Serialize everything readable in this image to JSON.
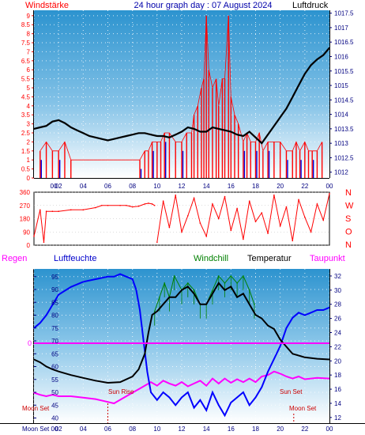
{
  "header": {
    "left": "Windstärke",
    "center": "24 hour graph day : 07 August 2024",
    "right": "Luftdruck"
  },
  "mid_header": {
    "regen": "Regen",
    "luftfeuchte": "Luftfeuchte",
    "windchill": "Windchill",
    "temperatur": "Temperatur",
    "taupunkt": "Taupunkt"
  },
  "colors": {
    "wind": "#ff0000",
    "wind_blue": "#0000dd",
    "pressure": "#000000",
    "humidity": "#0000ff",
    "temperature": "#000000",
    "windchill": "#008000",
    "dewpoint": "#ff00ff",
    "rain": "#ff00ff",
    "axis_left": "#ff0000",
    "axis_right": "#000080"
  },
  "chart_data": [
    {
      "type": "line",
      "panel": "wind_pressure",
      "x_ticks": [
        "00",
        "02",
        "04",
        "06",
        "08",
        "10",
        "12",
        "14",
        "16",
        "18",
        "20",
        "22",
        "00"
      ],
      "left_axis": {
        "label": "Windstärke",
        "ticks": [
          "0",
          "0.5",
          "1",
          "1.5",
          "2",
          "2.5",
          "3",
          "3.5",
          "4",
          "4.5",
          "5",
          "5.5",
          "6",
          "6.5",
          "7",
          "7.5",
          "8",
          "8.5",
          "9"
        ],
        "ylim": [
          0,
          9.3
        ]
      },
      "right_axis": {
        "label": "Luftdruck",
        "ticks": [
          "1012",
          "1012.5",
          "1013",
          "1013.5",
          "1014",
          "1014.5",
          "1015",
          "1015.5",
          "1016",
          "1016.5",
          "1017",
          "1017.5"
        ],
        "ylim": [
          1011.8,
          1017.6
        ]
      },
      "pressure": {
        "x": [
          0,
          0.5,
          1,
          1.5,
          2,
          2.5,
          3,
          3.5,
          4,
          4.5,
          5,
          5.5,
          6,
          6.5,
          7,
          7.5,
          8,
          8.5,
          9,
          9.5,
          10,
          10.5,
          11,
          11.5,
          12,
          12.5,
          13,
          13.5,
          14,
          14.5,
          15,
          15.5,
          16,
          16.5,
          17,
          17.5,
          18,
          18.5,
          19,
          19.5,
          20,
          20.5,
          21,
          21.5,
          22,
          22.5,
          23,
          23.5,
          24
        ],
        "values": [
          1013.5,
          1013.55,
          1013.6,
          1013.75,
          1013.8,
          1013.7,
          1013.55,
          1013.45,
          1013.35,
          1013.25,
          1013.2,
          1013.15,
          1013.1,
          1013.15,
          1013.2,
          1013.25,
          1013.3,
          1013.35,
          1013.35,
          1013.3,
          1013.25,
          1013.25,
          1013.2,
          1013.3,
          1013.4,
          1013.55,
          1013.5,
          1013.4,
          1013.4,
          1013.55,
          1013.5,
          1013.45,
          1013.4,
          1013.3,
          1013.25,
          1013.4,
          1013.2,
          1013.0,
          1013.3,
          1013.6,
          1013.9,
          1014.2,
          1014.6,
          1015.0,
          1015.4,
          1015.7,
          1015.9,
          1016.05,
          1016.3
        ]
      },
      "wind": {
        "x": [
          0.5,
          1,
          1.5,
          2,
          2.5,
          3,
          8.6,
          9,
          9.3,
          9.6,
          10,
          10.3,
          10.6,
          11,
          11.5,
          12,
          12.4,
          12.8,
          13,
          13.3,
          13.6,
          13.8,
          14,
          14.2,
          14.5,
          14.8,
          15,
          15.3,
          15.5,
          15.8,
          16,
          16.3,
          16.6,
          17,
          17.3,
          17.6,
          18,
          18.3,
          18.6,
          19,
          19.5,
          20,
          20.5,
          21,
          21.3,
          21.6,
          22,
          22.3,
          22.6,
          23,
          23.4
        ],
        "values": [
          1.5,
          2,
          1.5,
          1.5,
          2,
          1,
          1,
          1.5,
          1.5,
          2,
          2,
          2,
          2.5,
          2.5,
          2,
          2,
          2.5,
          2.5,
          3.5,
          4,
          5,
          5.5,
          9,
          6,
          5,
          5.5,
          4,
          5.5,
          5.5,
          9,
          4.5,
          3.5,
          3,
          2,
          2.5,
          2,
          2,
          2.5,
          1.5,
          2,
          2,
          2,
          1.5,
          1.5,
          2,
          1.5,
          2,
          1.5,
          1.5,
          1.5,
          2
        ]
      }
    },
    {
      "type": "line",
      "panel": "wind_direction",
      "left_axis": {
        "ticks": [
          "0",
          "90",
          "180",
          "270",
          "360"
        ],
        "ylim": [
          0,
          360
        ]
      },
      "right_labels": [
        "N",
        "W",
        "S",
        "O",
        "N"
      ],
      "series": [
        {
          "x": [
            0,
            0.5,
            0.8,
            1,
            1.5,
            2,
            3,
            4,
            5,
            5.5,
            6,
            7,
            7.5,
            7.8,
            8,
            8.5,
            9,
            9.3,
            9.6,
            9.8
          ],
          "values": [
            60,
            240,
            20,
            230,
            230,
            230,
            240,
            240,
            255,
            270,
            270,
            270,
            270,
            265,
            260,
            265,
            280,
            285,
            280,
            270
          ]
        },
        {
          "x": [
            10,
            10.5,
            11,
            11.5,
            12,
            12.5,
            13,
            13.5,
            14,
            14.5,
            15,
            15.5,
            16,
            16.5,
            17,
            17.5,
            18,
            18.5,
            19,
            19.5,
            20,
            20.5,
            21,
            21.5,
            22,
            22.5,
            23,
            23.5,
            24
          ],
          "values": [
            20,
            300,
            120,
            340,
            90,
            200,
            320,
            150,
            60,
            280,
            180,
            330,
            100,
            250,
            40,
            300,
            160,
            220,
            80,
            340,
            130,
            260,
            30,
            310,
            190,
            90,
            280,
            170,
            350
          ]
        }
      ]
    },
    {
      "type": "line",
      "panel": "humidity_temperature",
      "left_axis": {
        "label": "Luftfeuchte",
        "ticks": [
          "40",
          "45",
          "50",
          "55",
          "60",
          "65",
          "70",
          "75",
          "80",
          "85",
          "90",
          "95"
        ],
        "ylim": [
          38,
          98
        ]
      },
      "right_axis": {
        "label": "Temperatur",
        "ticks": [
          "12",
          "14",
          "16",
          "18",
          "20",
          "22",
          "24",
          "26",
          "28",
          "30",
          "32"
        ],
        "ylim": [
          11.2,
          33
        ]
      },
      "rain_label": "0",
      "annotations": [
        "Moon Set",
        "Sun Rise",
        "Sun Set",
        "Moon Set"
      ],
      "bottom_left": "Moon Set",
      "series": [
        {
          "name": "Luftfeuchte",
          "x": [
            0,
            0.5,
            1,
            1.5,
            2,
            3,
            4,
            5,
            6,
            6.5,
            7,
            7.5,
            8,
            8.3,
            8.6,
            8.9,
            9.2,
            9.5,
            10,
            10.5,
            11,
            11.5,
            12,
            12.5,
            13,
            13.5,
            14,
            14.5,
            15,
            15.5,
            16,
            16.5,
            17,
            17.5,
            18,
            18.5,
            19,
            19.5,
            20,
            20.5,
            21,
            21.5,
            22,
            22.5,
            23,
            23.5,
            24
          ],
          "values": [
            75,
            77,
            80,
            84,
            88,
            91,
            93,
            94,
            95,
            95,
            96,
            95,
            94,
            90,
            82,
            70,
            58,
            50,
            47,
            50,
            48,
            45,
            48,
            50,
            44,
            47,
            43,
            50,
            45,
            41,
            46,
            48,
            50,
            45,
            48,
            52,
            58,
            63,
            68,
            75,
            79,
            81,
            80,
            81,
            82,
            82,
            83
          ]
        },
        {
          "name": "Temperatur",
          "x": [
            0,
            0.5,
            1,
            1.5,
            2,
            3,
            4,
            5,
            6,
            7,
            8,
            8.5,
            9,
            9.3,
            9.6,
            10,
            10.5,
            11,
            11.5,
            12,
            12.5,
            13,
            13.5,
            14,
            14.5,
            15,
            15.5,
            16,
            16.5,
            17,
            17.5,
            18,
            18.5,
            19,
            19.5,
            20,
            20.5,
            21,
            22,
            23,
            24
          ],
          "values": [
            20.2,
            19.8,
            19.2,
            18.8,
            18.5,
            18.0,
            17.6,
            17.2,
            16.9,
            17.0,
            17.8,
            18.8,
            21.0,
            24.0,
            26.5,
            27.0,
            28.0,
            29.0,
            29.0,
            30.0,
            30.5,
            29.5,
            28.0,
            28.0,
            29.5,
            31.0,
            30.0,
            30.5,
            29.0,
            29.5,
            28.0,
            26.5,
            26.0,
            25.0,
            24.5,
            23.0,
            22.0,
            21.0,
            20.5,
            20.3,
            20.2
          ]
        },
        {
          "name": "Windchill",
          "x": [
            9.8,
            10.2,
            10.6,
            11,
            11.4,
            12,
            12.5,
            13,
            13.5,
            14,
            14.5,
            15,
            15.5,
            16,
            16.5,
            17,
            17.5,
            17.9
          ],
          "values": [
            27,
            29,
            31,
            29,
            32,
            30,
            31,
            30,
            28,
            28,
            30,
            32,
            31,
            32,
            31,
            32,
            30,
            28
          ]
        },
        {
          "name": "Taupunkt",
          "x": [
            0,
            0.5,
            1,
            1.5,
            2,
            3,
            4,
            5,
            6,
            6.5,
            7,
            7.5,
            8,
            8.5,
            9,
            9.5,
            10,
            10.5,
            11,
            11.5,
            12,
            12.5,
            13,
            13.5,
            14,
            14.5,
            15,
            15.5,
            16,
            16.5,
            17,
            17.5,
            18,
            18.5,
            19,
            19.5,
            20,
            20.5,
            21,
            21.5,
            22,
            23,
            24
          ],
          "values": [
            15.5,
            15.2,
            15.0,
            15.2,
            15.0,
            15.0,
            14.8,
            14.6,
            14.2,
            14.0,
            14.5,
            15.0,
            15.5,
            16.0,
            16.5,
            17.0,
            16.5,
            17.2,
            16.8,
            16.5,
            17.0,
            16.4,
            16.8,
            17.2,
            16.5,
            17.5,
            16.8,
            17.5,
            16.9,
            17.4,
            17.0,
            17.5,
            17.0,
            17.8,
            18.0,
            18.5,
            18.2,
            17.8,
            17.5,
            17.8,
            17.4,
            17.6,
            17.5
          ]
        }
      ]
    }
  ]
}
